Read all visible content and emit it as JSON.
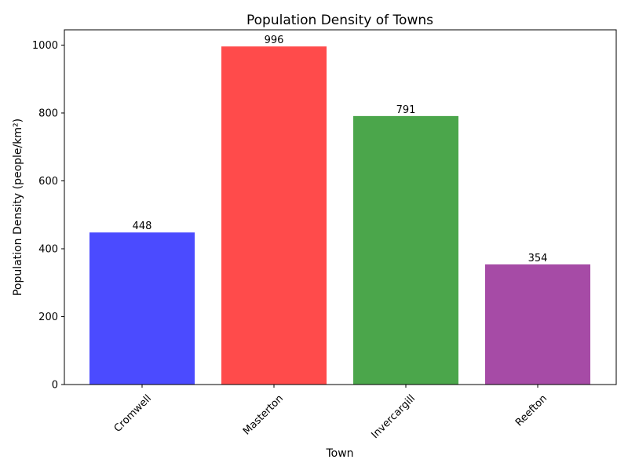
{
  "chart_data": {
    "type": "bar",
    "title": "Population Density of Towns",
    "xlabel": "Town",
    "ylabel": "Population Density (people/km²)",
    "categories": [
      "Cromwell",
      "Masterton",
      "Invercargill",
      "Reefton"
    ],
    "values": [
      448,
      996,
      791,
      354
    ],
    "value_labels": [
      "448",
      "996",
      "791",
      "354"
    ],
    "colors": [
      "#4b4bff",
      "#ff4b4b",
      "#4ba64b",
      "#a64ba6"
    ],
    "ylim": [
      0,
      1045
    ],
    "yticks": [
      0,
      200,
      400,
      600,
      800,
      1000
    ],
    "ytick_labels": [
      "0",
      "200",
      "400",
      "600",
      "800",
      "1000"
    ],
    "xtick_rotation": "45 degrees",
    "grid": false,
    "legend": "none"
  }
}
